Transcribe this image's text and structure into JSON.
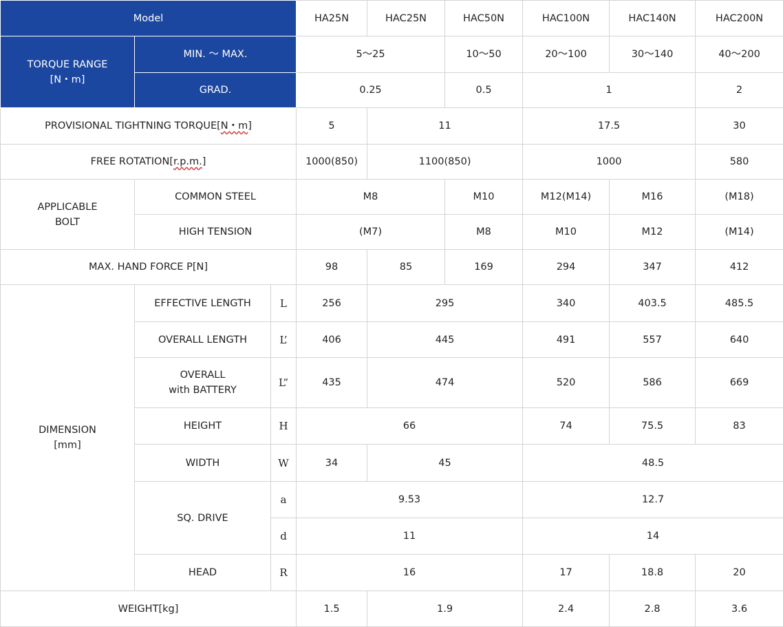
{
  "header": {
    "model_label": "Model",
    "models": [
      "HA25N",
      "HAC25N",
      "HAC50N",
      "HAC100N",
      "HAC140N",
      "HAC200N"
    ]
  },
  "torque_range": {
    "label_line1": "TORQUE RANGE",
    "label_line2": "[N・m]",
    "min_max_label": "MIN. ～ MAX.",
    "min_max_values": [
      "5～25",
      "10～50",
      "20～100",
      "30～140",
      "40～200"
    ],
    "grad_label": "GRAD.",
    "grad_values": [
      "0.25",
      "0.5",
      "1",
      "2"
    ]
  },
  "provisional_torque": {
    "label_prefix": "PROVISIONAL TIGHTNING TORQUE[",
    "label_unit": "N・m",
    "label_suffix": "]",
    "values": [
      "5",
      "11",
      "17.5",
      "30"
    ]
  },
  "free_rotation": {
    "label_prefix": "FREE ROTATION[",
    "label_unit": "r.p.m.",
    "label_suffix": "]",
    "values": [
      "1000(850)",
      "1100(850)",
      "1000",
      "580"
    ]
  },
  "applicable_bolt": {
    "label_line1": "APPLICABLE",
    "label_line2": "BOLT",
    "common_steel_label": "COMMON STEEL",
    "common_steel_values": [
      "M8",
      "M10",
      "M12(M14)",
      "M16",
      "(M18)"
    ],
    "high_tension_label": "HIGH TENSION",
    "high_tension_values": [
      "(M7)",
      "M8",
      "M10",
      "M12",
      "(M14)"
    ]
  },
  "max_hand_force": {
    "label": "MAX. HAND FORCE P[N]",
    "values": [
      "98",
      "85",
      "169",
      "294",
      "347",
      "412"
    ]
  },
  "dimension": {
    "label_line1": "DIMENSION",
    "label_line2": "[mm]",
    "effective_length": {
      "label": "EFFECTIVE LENGTH",
      "symbol": "L",
      "values": [
        "256",
        "295",
        "340",
        "403.5",
        "485.5"
      ]
    },
    "overall_length": {
      "label": "OVERALL LENGTH",
      "symbol": "L’",
      "values": [
        "406",
        "445",
        "491",
        "557",
        "640"
      ]
    },
    "overall_battery": {
      "label_line1": "OVERALL",
      "label_line2": "with BATTERY",
      "symbol": "L”",
      "values": [
        "435",
        "474",
        "520",
        "586",
        "669"
      ]
    },
    "height": {
      "label": "HEIGHT",
      "symbol": "H",
      "values": [
        "66",
        "74",
        "75.5",
        "83"
      ]
    },
    "width": {
      "label": "WIDTH",
      "symbol": "W",
      "values": [
        "34",
        "45",
        "48.5"
      ]
    },
    "sq_drive": {
      "label": "SQ. DRIVE",
      "symbol_a": "a",
      "values_a": [
        "9.53",
        "12.7"
      ],
      "symbol_d": "d",
      "values_d": [
        "11",
        "14"
      ]
    },
    "head": {
      "label": "HEAD",
      "symbol": "R",
      "values": [
        "16",
        "17",
        "18.8",
        "20"
      ]
    }
  },
  "weight": {
    "label": "WEIGHT[kg]",
    "values": [
      "1.5",
      "1.9",
      "2.4",
      "2.8",
      "3.6"
    ]
  },
  "colors": {
    "header_blue": "#1b47a0",
    "border_gray": "#d4d4d4",
    "text": "#222222"
  }
}
